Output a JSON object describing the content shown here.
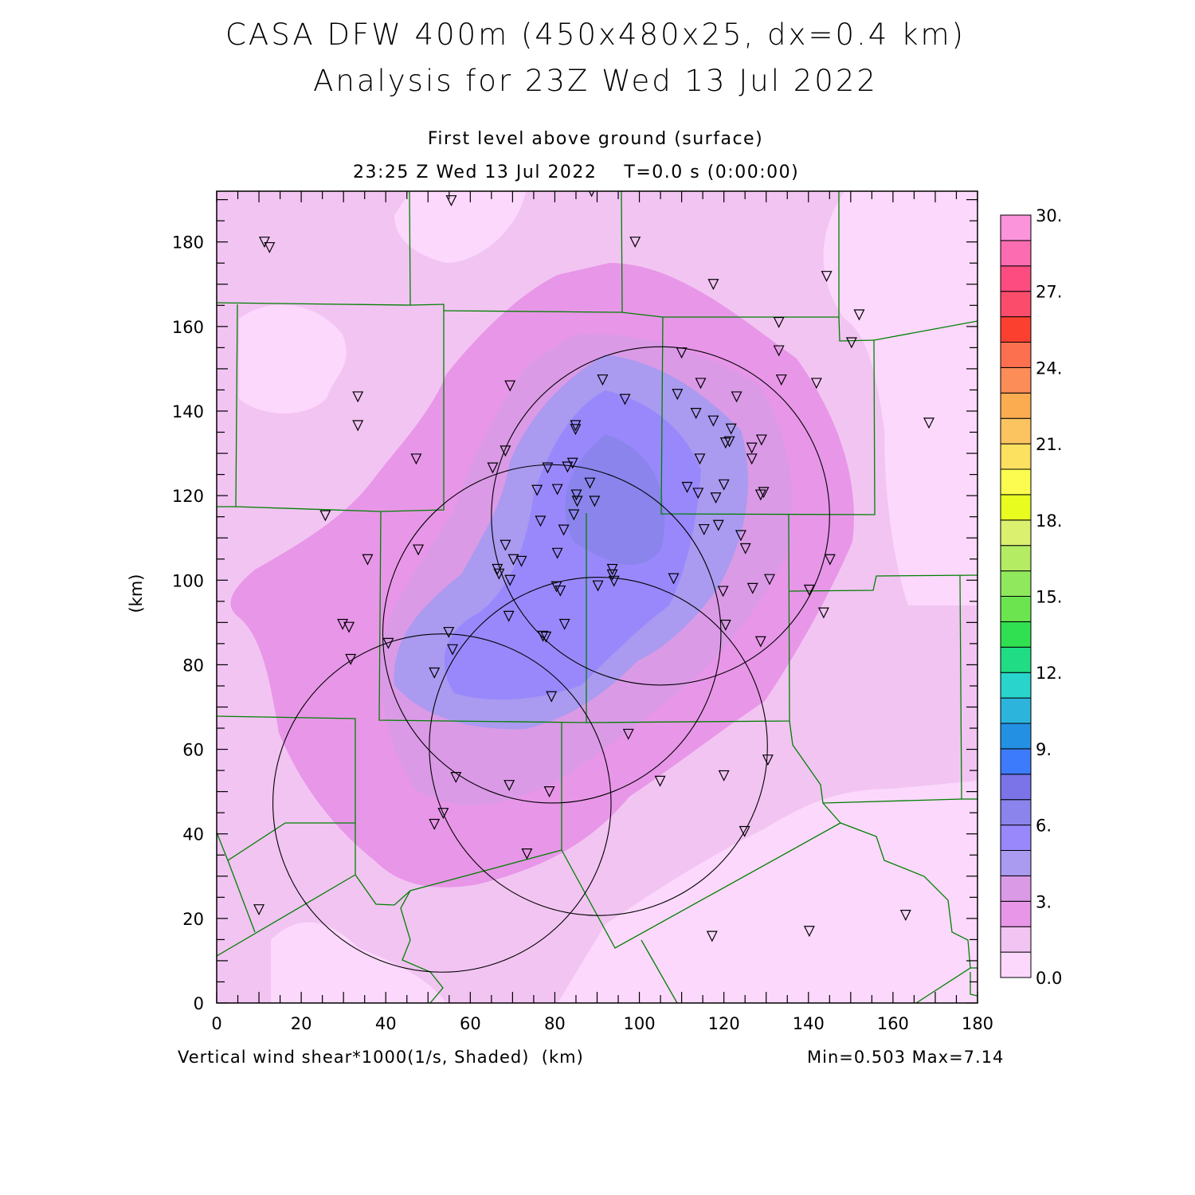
{
  "title_line1": "CASA DFW 400m (450x480x25, dx=0.4 km)",
  "title_line2": "Analysis for 23Z Wed 13 Jul 2022",
  "subtitle_line1": "First level above ground (surface)",
  "subtitle_line2": "23:25 Z Wed 13 Jul 2022    T=0.0 s (0:00:00)",
  "footer_left": "Vertical wind shear*1000(1/s, Shaded)  (km)",
  "footer_right": "Min=0.503 Max=7.14",
  "chart_data": {
    "type": "heatmap",
    "title": "Vertical wind shear*1000 (1/s, Shaded)",
    "xlabel": "(km)",
    "ylabel": "(km)",
    "xlim": [
      0,
      180
    ],
    "ylim": [
      0,
      192
    ],
    "x_ticks": [
      "0",
      "20",
      "40",
      "60",
      "80",
      "100",
      "120",
      "140",
      "160",
      "180"
    ],
    "y_ticks": [
      "0",
      "20",
      "40",
      "60",
      "80",
      "100",
      "120",
      "140",
      "160",
      "180"
    ],
    "min": 0.503,
    "max": 7.14,
    "colorbar": {
      "range": [
        0,
        30
      ],
      "step": 1,
      "labels": [
        "0.0",
        "3.",
        "6.",
        "9.",
        "12.",
        "15.",
        "18.",
        "21.",
        "24.",
        "27.",
        "30."
      ],
      "colors": [
        "#fcd8fc",
        "#f2c4f2",
        "#e896e8",
        "#da9ae6",
        "#aa9af0",
        "#9888fc",
        "#8a84ec",
        "#7a74e8",
        "#3c7cfc",
        "#2490e4",
        "#2cb4dc",
        "#28d4cc",
        "#20dc84",
        "#30e050",
        "#6ce450",
        "#90e85c",
        "#b4ec64",
        "#dcf070",
        "#e8fc20",
        "#fcfc50",
        "#fce060",
        "#fcc460",
        "#fcac50",
        "#fc8c58",
        "#fc7050",
        "#fc4030",
        "#fc4c6c",
        "#fc4c80",
        "#fc6cb0",
        "#fc94dc"
      ]
    },
    "range_rings": [
      {
        "center": [
          105.0,
          115.2
        ],
        "radius_km": 40
      },
      {
        "center": [
          79.3,
          87.3
        ],
        "radius_km": 40
      },
      {
        "center": [
          90.3,
          60.7
        ],
        "radius_km": 40
      },
      {
        "center": [
          53.3,
          47.3
        ],
        "radius_km": 40
      }
    ],
    "stations": [
      [
        11.3,
        180
      ],
      [
        12.5,
        178.7
      ],
      [
        55.5,
        189.8
      ],
      [
        88.7,
        192
      ],
      [
        99,
        180
      ],
      [
        117.5,
        170
      ],
      [
        144.3,
        171.9
      ],
      [
        152,
        162.8
      ],
      [
        133,
        161
      ],
      [
        150.2,
        156.2
      ],
      [
        110,
        153.8
      ],
      [
        133,
        154.3
      ],
      [
        33.4,
        143.4
      ],
      [
        33.4,
        136.6
      ],
      [
        69.4,
        146
      ],
      [
        91.3,
        147.4
      ],
      [
        96.6,
        142.8
      ],
      [
        109,
        144
      ],
      [
        114.5,
        146.6
      ],
      [
        133.6,
        147.4
      ],
      [
        141.9,
        146.6
      ],
      [
        123,
        143.4
      ],
      [
        168.5,
        137.2
      ],
      [
        113.4,
        139.5
      ],
      [
        117.5,
        137.7
      ],
      [
        121.7,
        135.8
      ],
      [
        84.9,
        136.6
      ],
      [
        84.9,
        135.7
      ],
      [
        68.3,
        130.6
      ],
      [
        120.4,
        132.5
      ],
      [
        121.3,
        132.8
      ],
      [
        128.9,
        133.2
      ],
      [
        126.6,
        131.3
      ],
      [
        126.6,
        128.7
      ],
      [
        114.3,
        128.7
      ],
      [
        47.2,
        128.7
      ],
      [
        65.3,
        126.6
      ],
      [
        78.3,
        126.6
      ],
      [
        83,
        126.8
      ],
      [
        84.2,
        127.7
      ],
      [
        88.3,
        123
      ],
      [
        75.8,
        121.3
      ],
      [
        80.6,
        121.5
      ],
      [
        85.1,
        120.2
      ],
      [
        111.3,
        122
      ],
      [
        113.9,
        120.6
      ],
      [
        118.1,
        119.5
      ],
      [
        120,
        122.6
      ],
      [
        129.4,
        120.8
      ],
      [
        128.7,
        120.2
      ],
      [
        85.3,
        118.7
      ],
      [
        89.4,
        118.7
      ],
      [
        84.5,
        115.5
      ],
      [
        25.7,
        115.3
      ],
      [
        76.6,
        114
      ],
      [
        82.1,
        111.9
      ],
      [
        115.3,
        112
      ],
      [
        118.7,
        113
      ],
      [
        124,
        110.6
      ],
      [
        125.1,
        107.5
      ],
      [
        68.3,
        108.3
      ],
      [
        47.7,
        107.2
      ],
      [
        35.7,
        104.9
      ],
      [
        70.2,
        104.9
      ],
      [
        72.1,
        104.5
      ],
      [
        80.6,
        106.4
      ],
      [
        66.4,
        102.6
      ],
      [
        66.8,
        101.5
      ],
      [
        69.4,
        100
      ],
      [
        93.6,
        102.6
      ],
      [
        93.6,
        101.3
      ],
      [
        94,
        99.8
      ],
      [
        108.1,
        100.4
      ],
      [
        130.8,
        100.2
      ],
      [
        145.1,
        104.9
      ],
      [
        90.2,
        98.7
      ],
      [
        80.4,
        98.5
      ],
      [
        81.3,
        97.5
      ],
      [
        119.8,
        97.4
      ],
      [
        126.8,
        98.1
      ],
      [
        140.2,
        97.7
      ],
      [
        143.6,
        92.3
      ],
      [
        69.1,
        91.5
      ],
      [
        82.3,
        89.6
      ],
      [
        120.4,
        89.4
      ],
      [
        29.8,
        89.6
      ],
      [
        31.3,
        88.9
      ],
      [
        54.9,
        87.7
      ],
      [
        77.2,
        86.8
      ],
      [
        77.9,
        86.6
      ],
      [
        40.6,
        85.1
      ],
      [
        55.8,
        83.6
      ],
      [
        128.7,
        85.5
      ],
      [
        31.7,
        81.3
      ],
      [
        51.5,
        78.1
      ],
      [
        79.2,
        72.5
      ],
      [
        97.4,
        63.6
      ],
      [
        130.4,
        57.5
      ],
      [
        56.6,
        53.4
      ],
      [
        120,
        53.8
      ],
      [
        69.2,
        51.5
      ],
      [
        78.7,
        50
      ],
      [
        104.9,
        52.5
      ],
      [
        53.6,
        44.9
      ],
      [
        51.5,
        42.3
      ],
      [
        124.9,
        40.6
      ],
      [
        73.4,
        35.3
      ],
      [
        10,
        22.1
      ],
      [
        117.2,
        15.8
      ],
      [
        140.2,
        17
      ],
      [
        163,
        20.8
      ]
    ]
  }
}
